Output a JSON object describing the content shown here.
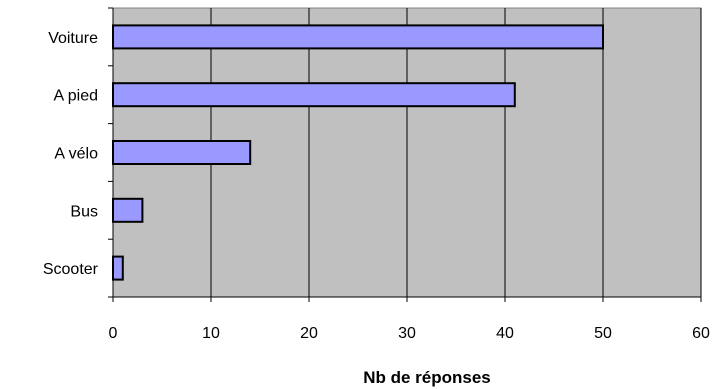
{
  "chart_data": {
    "type": "bar",
    "orientation": "horizontal",
    "categories": [
      "Voiture",
      "A pied",
      "A vélo",
      "Bus",
      "Scooter"
    ],
    "values": [
      50,
      41,
      14,
      3,
      1
    ],
    "xlabel": "Nb de réponses",
    "xlim": [
      0,
      60
    ],
    "xticks": [
      0,
      10,
      20,
      30,
      40,
      50,
      60
    ],
    "grid": "vertical",
    "legend": "none",
    "colors": {
      "bar": "#9999ff",
      "plot_background": "#c0c0c0",
      "gridline": "#000000"
    }
  }
}
